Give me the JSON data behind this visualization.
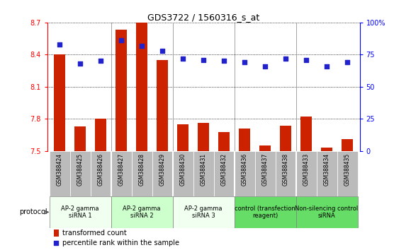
{
  "title": "GDS3722 / 1560316_s_at",
  "samples": [
    "GSM388424",
    "GSM388425",
    "GSM388426",
    "GSM388427",
    "GSM388428",
    "GSM388429",
    "GSM388430",
    "GSM388431",
    "GSM388432",
    "GSM388436",
    "GSM388437",
    "GSM388438",
    "GSM388433",
    "GSM388434",
    "GSM388435"
  ],
  "transformed_count": [
    8.4,
    7.73,
    7.8,
    8.63,
    8.7,
    8.35,
    7.75,
    7.76,
    7.68,
    7.71,
    7.55,
    7.74,
    7.82,
    7.53,
    7.61
  ],
  "percentile_rank": [
    83,
    68,
    70,
    86,
    82,
    78,
    72,
    71,
    70,
    69,
    66,
    72,
    71,
    66,
    69
  ],
  "ylim_left": [
    7.5,
    8.7
  ],
  "ylim_right": [
    0,
    100
  ],
  "yticks_left": [
    7.5,
    7.8,
    8.1,
    8.4,
    8.7
  ],
  "yticks_right": [
    0,
    25,
    50,
    75,
    100
  ],
  "ytick_labels_right": [
    "0",
    "25",
    "50",
    "75",
    "100%"
  ],
  "bar_color": "#cc2200",
  "dot_color": "#2222cc",
  "bg_color": "#ffffff",
  "groups": [
    {
      "label": "AP-2 gamma\nsiRNA 1",
      "start": 0,
      "end": 3,
      "color": "#f0fff0"
    },
    {
      "label": "AP-2 gamma\nsiRNA 2",
      "start": 3,
      "end": 6,
      "color": "#ccffcc"
    },
    {
      "label": "AP-2 gamma\nsiRNA 3",
      "start": 6,
      "end": 9,
      "color": "#f0fff0"
    },
    {
      "label": "control (transfection\nreagent)",
      "start": 9,
      "end": 12,
      "color": "#66dd66"
    },
    {
      "label": "Non-silencing control\nsiRNA",
      "start": 12,
      "end": 15,
      "color": "#66dd66"
    }
  ],
  "protocol_label": "protocol",
  "legend_bar_label": "transformed count",
  "legend_dot_label": "percentile rank within the sample",
  "sample_bg": "#bbbbbb"
}
